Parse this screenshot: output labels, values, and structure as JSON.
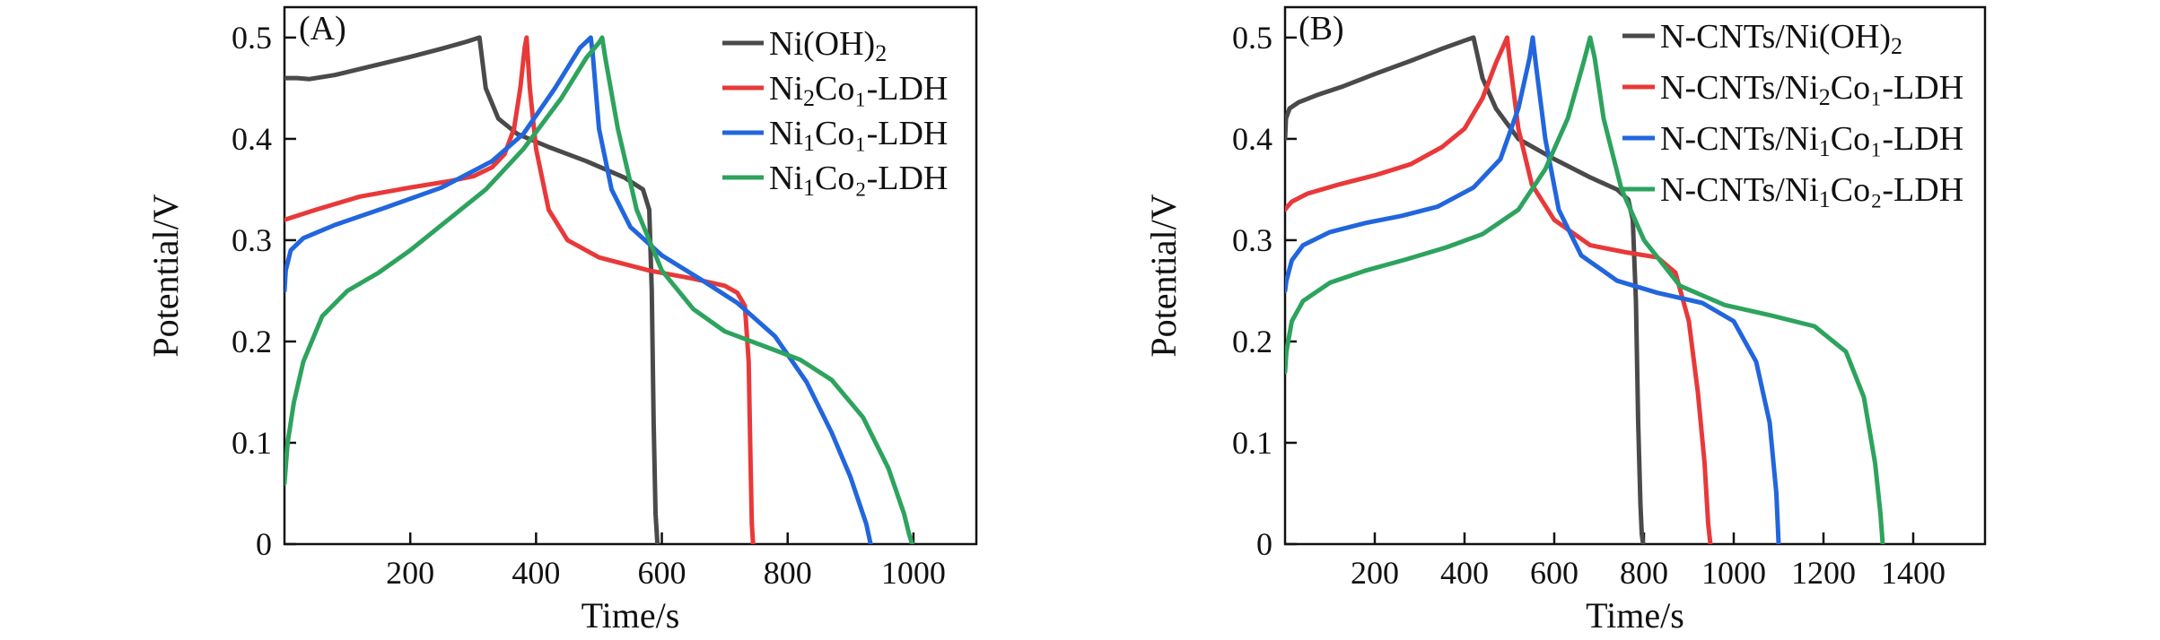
{
  "chart_data": [
    {
      "type": "line",
      "panel_label": "(A)",
      "xlabel": "Time/s",
      "ylabel": "Potential/V",
      "xlim": [
        0,
        1100
      ],
      "ylim": [
        0,
        0.53
      ],
      "xticks": [
        200,
        400,
        600,
        800,
        1000
      ],
      "xtick_labels": [
        "200",
        "400",
        "600",
        "800",
        "1000"
      ],
      "yticks": [
        0,
        0.1,
        0.2,
        0.3,
        0.4,
        0.5
      ],
      "ytick_labels": [
        "0",
        "0.1",
        "0.2",
        "0.3",
        "0.4",
        "0.5"
      ],
      "legend_position": "top-right",
      "series": [
        {
          "name": "Ni(OH)2",
          "label_main": "Ni(OH)",
          "label_sub": "2",
          "label_tail": "",
          "color": "#4a4a4a",
          "x": [
            0,
            20,
            40,
            80,
            140,
            200,
            250,
            290,
            310,
            312,
            320,
            340,
            370,
            420,
            480,
            540,
            570,
            580,
            584,
            587,
            590,
            593
          ],
          "y": [
            0.46,
            0.46,
            0.459,
            0.463,
            0.472,
            0.481,
            0.489,
            0.496,
            0.5,
            0.49,
            0.45,
            0.42,
            0.405,
            0.392,
            0.378,
            0.362,
            0.35,
            0.33,
            0.25,
            0.12,
            0.03,
            0
          ]
        },
        {
          "name": "Ni2Co1-LDH",
          "label_main": "Ni",
          "label_sub": "2",
          "label_tail": "Co₁-LDH",
          "color": "#e8393a",
          "x": [
            0,
            50,
            120,
            200,
            260,
            300,
            330,
            350,
            365,
            375,
            382,
            385,
            390,
            400,
            420,
            450,
            500,
            580,
            650,
            700,
            720,
            732,
            738,
            741,
            743,
            745
          ],
          "y": [
            0.32,
            0.33,
            0.343,
            0.352,
            0.358,
            0.363,
            0.372,
            0.385,
            0.41,
            0.45,
            0.49,
            0.5,
            0.45,
            0.39,
            0.33,
            0.3,
            0.283,
            0.27,
            0.262,
            0.255,
            0.248,
            0.235,
            0.18,
            0.08,
            0.02,
            0
          ]
        },
        {
          "name": "Ni1Co1-LDH",
          "label_main": "Ni",
          "label_sub": "1",
          "label_tail": "Co₁-LDH",
          "color": "#2266dd",
          "x": [
            0,
            2,
            10,
            30,
            80,
            160,
            250,
            330,
            380,
            430,
            470,
            487,
            490,
            500,
            520,
            550,
            600,
            660,
            720,
            780,
            830,
            870,
            900,
            925,
            932
          ],
          "y": [
            0.25,
            0.27,
            0.29,
            0.302,
            0.315,
            0.332,
            0.352,
            0.378,
            0.405,
            0.45,
            0.49,
            0.5,
            0.485,
            0.41,
            0.35,
            0.313,
            0.285,
            0.262,
            0.238,
            0.205,
            0.16,
            0.11,
            0.066,
            0.02,
            0
          ]
        },
        {
          "name": "Ni1Co2-LDH",
          "label_main": "Ni",
          "label_sub": "1",
          "label_tail": "Co₂-LDH",
          "color": "#2da35e",
          "x": [
            0,
            5,
            15,
            30,
            60,
            100,
            150,
            200,
            260,
            320,
            380,
            440,
            480,
            500,
            505,
            510,
            530,
            560,
            600,
            650,
            700,
            760,
            820,
            870,
            920,
            960,
            985,
            993,
            998
          ],
          "y": [
            0.06,
            0.1,
            0.14,
            0.18,
            0.225,
            0.25,
            0.268,
            0.29,
            0.32,
            0.35,
            0.39,
            0.44,
            0.48,
            0.495,
            0.5,
            0.48,
            0.41,
            0.33,
            0.27,
            0.232,
            0.21,
            0.196,
            0.182,
            0.162,
            0.125,
            0.075,
            0.03,
            0.01,
            0
          ]
        }
      ]
    },
    {
      "type": "line",
      "panel_label": "(B)",
      "xlabel": "Time/s",
      "ylabel": "Potential/V",
      "xlim": [
        0,
        1560
      ],
      "ylim": [
        0,
        0.53
      ],
      "xticks": [
        200,
        400,
        600,
        800,
        1000,
        1200,
        1400
      ],
      "xtick_labels": [
        "200",
        "400",
        "600",
        "800",
        "1000",
        "1200",
        "1400"
      ],
      "yticks": [
        0,
        0.1,
        0.2,
        0.3,
        0.4,
        0.5
      ],
      "ytick_labels": [
        "0",
        "0.1",
        "0.2",
        "0.3",
        "0.4",
        "0.5"
      ],
      "legend_position": "top-right",
      "series": [
        {
          "name": "N-CNTs/Ni(OH)2",
          "label_main": "N-CNTs/Ni(OH)",
          "label_sub": "2",
          "label_tail": "",
          "color": "#4a4a4a",
          "x": [
            0,
            2,
            10,
            30,
            70,
            130,
            200,
            280,
            350,
            400,
            420,
            425,
            440,
            470,
            520,
            600,
            680,
            740,
            765,
            775,
            782,
            787,
            792,
            795,
            798
          ],
          "y": [
            0.4,
            0.42,
            0.43,
            0.436,
            0.443,
            0.452,
            0.464,
            0.477,
            0.489,
            0.497,
            0.5,
            0.49,
            0.46,
            0.43,
            0.4,
            0.38,
            0.362,
            0.35,
            0.34,
            0.32,
            0.24,
            0.12,
            0.04,
            0.01,
            0
          ]
        },
        {
          "name": "N-CNTs/Ni2Co1-LDH",
          "label_main": "N-CNTs/Ni",
          "label_sub": "2",
          "label_tail": "Co₁-LDH",
          "color": "#e8393a",
          "x": [
            0,
            3,
            15,
            50,
            120,
            200,
            280,
            350,
            400,
            440,
            470,
            490,
            495,
            500,
            520,
            550,
            600,
            680,
            760,
            830,
            870,
            900,
            920,
            935,
            943,
            948
          ],
          "y": [
            0.33,
            0.332,
            0.338,
            0.346,
            0.355,
            0.364,
            0.375,
            0.392,
            0.41,
            0.44,
            0.475,
            0.495,
            0.5,
            0.48,
            0.41,
            0.355,
            0.32,
            0.295,
            0.288,
            0.283,
            0.268,
            0.22,
            0.15,
            0.08,
            0.02,
            0
          ]
        },
        {
          "name": "N-CNTs/Ni1Co1-LDH",
          "label_main": "N-CNTs/Ni",
          "label_sub": "1",
          "label_tail": "Co₁-LDH",
          "color": "#2266dd",
          "x": [
            0,
            3,
            15,
            40,
            100,
            180,
            260,
            340,
            420,
            480,
            520,
            545,
            552,
            560,
            580,
            610,
            660,
            740,
            830,
            930,
            1000,
            1050,
            1080,
            1095,
            1100
          ],
          "y": [
            0.25,
            0.26,
            0.28,
            0.295,
            0.308,
            0.317,
            0.324,
            0.333,
            0.352,
            0.38,
            0.43,
            0.48,
            0.5,
            0.47,
            0.4,
            0.33,
            0.285,
            0.26,
            0.248,
            0.238,
            0.22,
            0.18,
            0.12,
            0.05,
            0
          ]
        },
        {
          "name": "N-CNTs/Ni1Co2-LDH",
          "label_main": "N-CNTs/Ni",
          "label_sub": "1",
          "label_tail": "Co₂-LDH",
          "color": "#2da35e",
          "x": [
            0,
            3,
            15,
            40,
            100,
            180,
            270,
            360,
            440,
            520,
            580,
            630,
            665,
            680,
            690,
            710,
            750,
            800,
            880,
            980,
            1080,
            1180,
            1250,
            1290,
            1315,
            1327,
            1332
          ],
          "y": [
            0.17,
            0.19,
            0.22,
            0.24,
            0.258,
            0.27,
            0.281,
            0.293,
            0.306,
            0.33,
            0.37,
            0.42,
            0.475,
            0.5,
            0.48,
            0.42,
            0.35,
            0.3,
            0.255,
            0.236,
            0.226,
            0.215,
            0.19,
            0.145,
            0.08,
            0.03,
            0
          ]
        }
      ]
    }
  ]
}
